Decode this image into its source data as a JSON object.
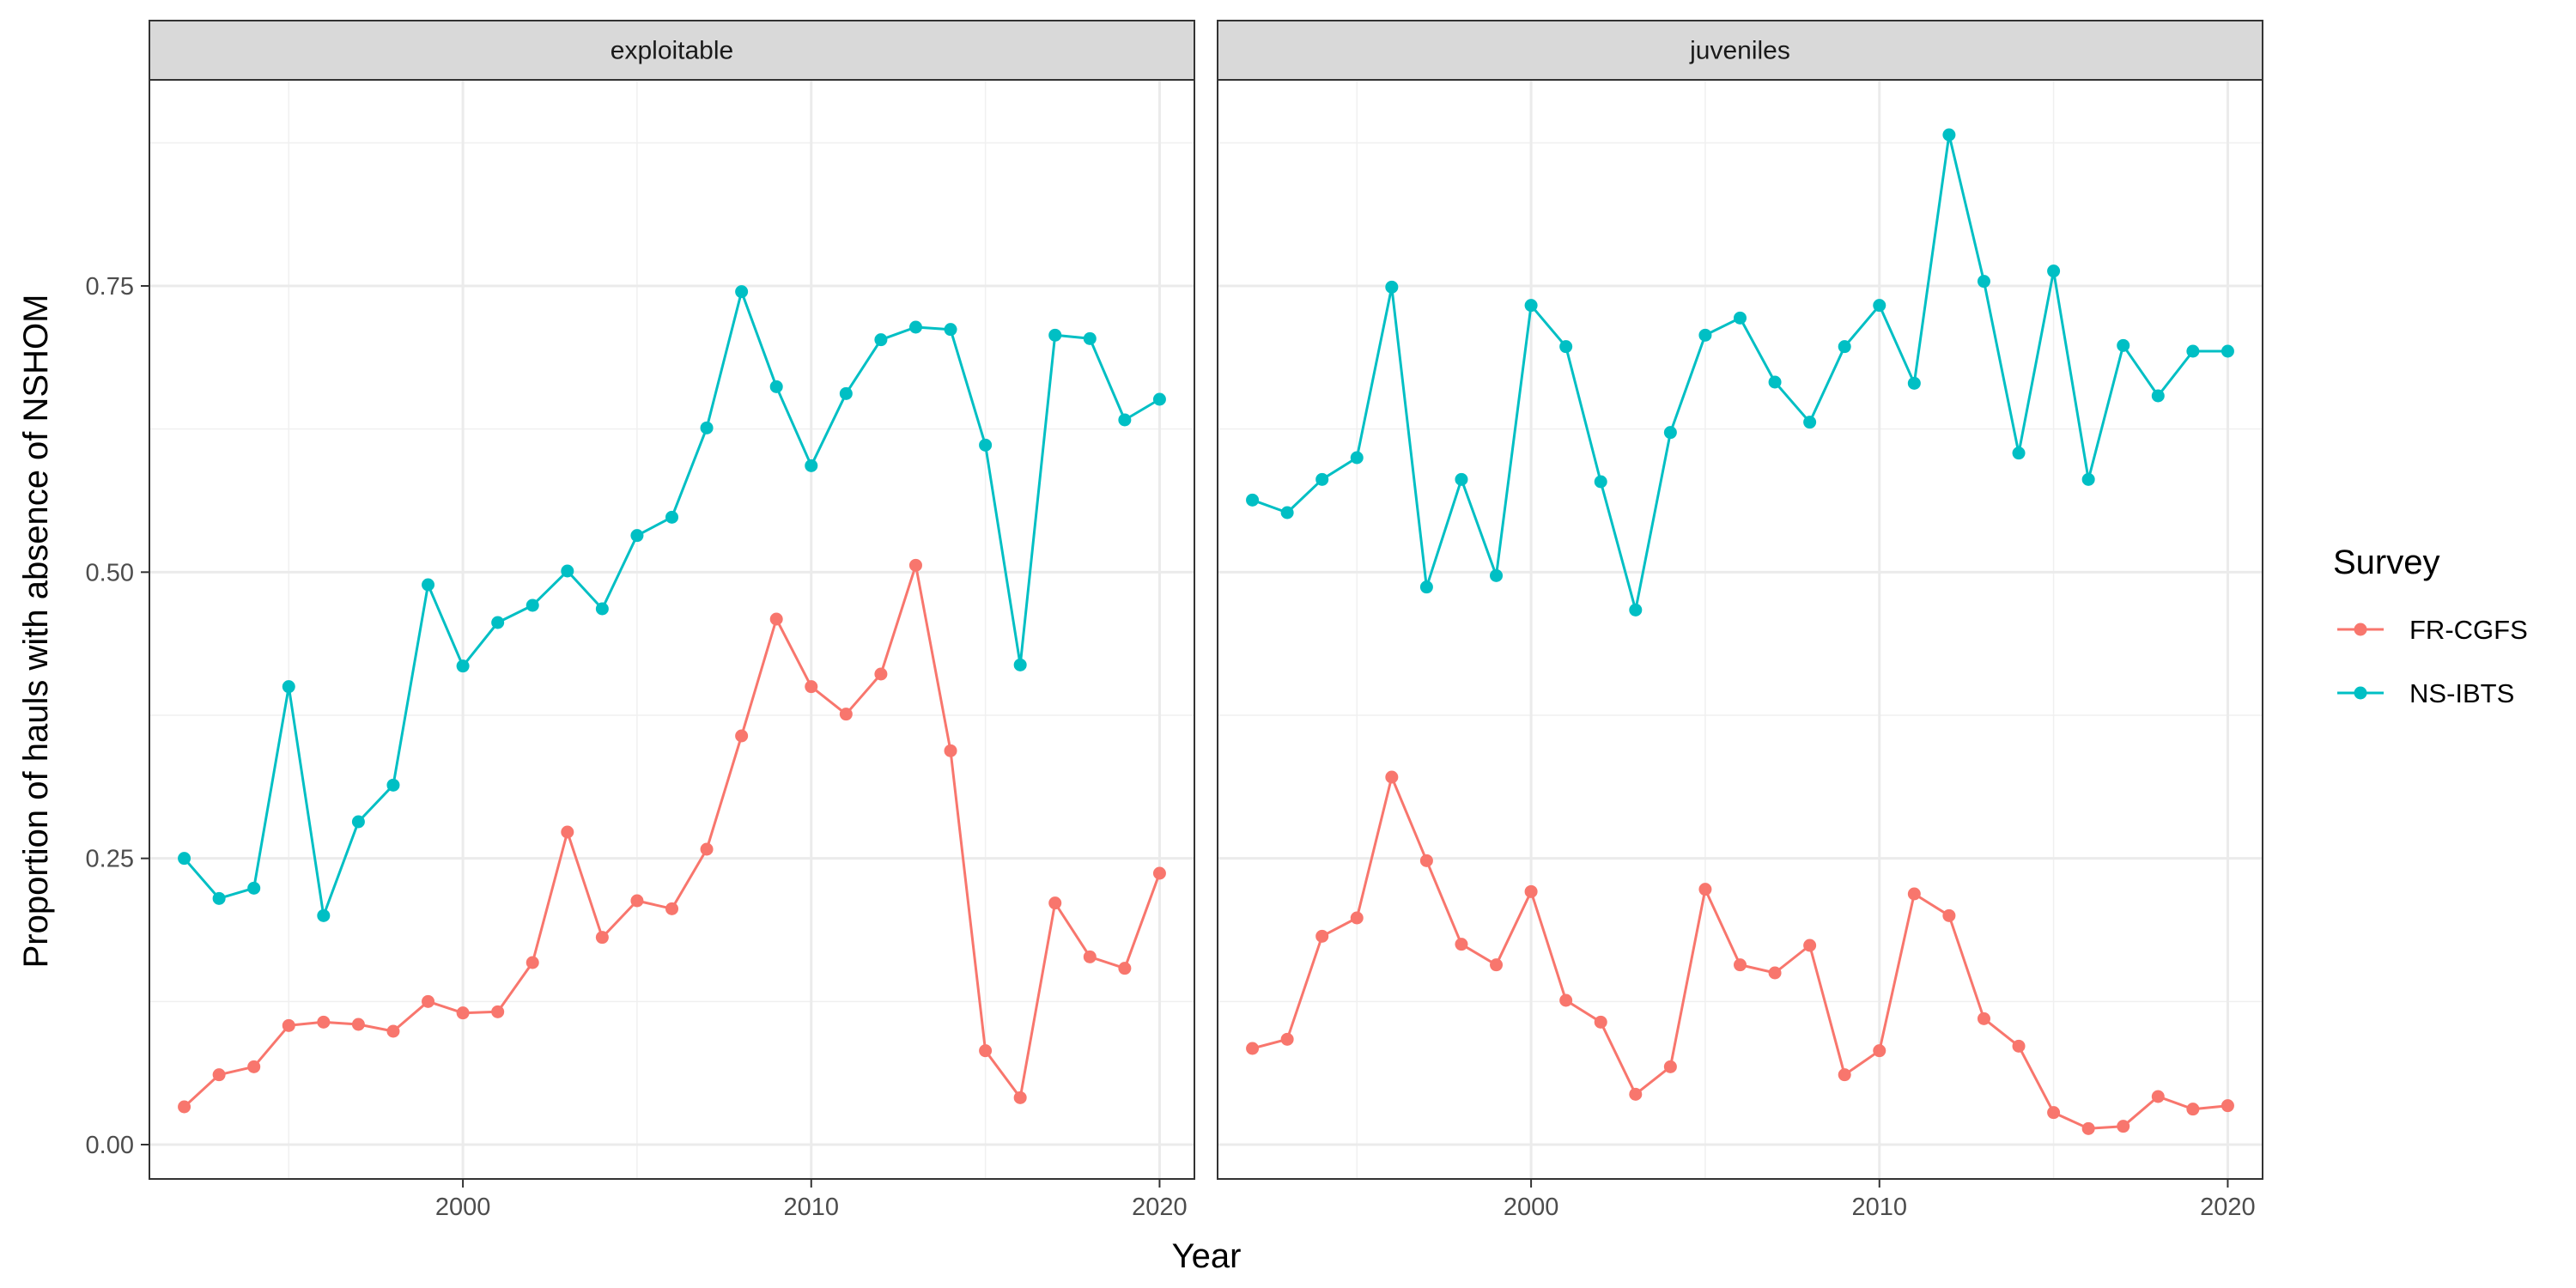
{
  "chart_data": {
    "type": "line",
    "xlabel": "Year",
    "ylabel": "Proportion of hauls with absence of NSHOM",
    "x_ticks": [
      2000,
      2010,
      2020
    ],
    "y_ticks": [
      "0.00",
      "0.25",
      "0.50",
      "0.75"
    ],
    "xlim": [
      1991,
      2021
    ],
    "ylim": [
      -0.03,
      0.93
    ],
    "grid": true,
    "legend": {
      "title": "Survey",
      "position": "right"
    },
    "series_colors": {
      "FR-CGFS": "#F8766D",
      "NS-IBTS": "#00BFC4"
    },
    "panels": [
      {
        "label": "exploitable",
        "x": [
          1992,
          1993,
          1994,
          1995,
          1996,
          1997,
          1998,
          1999,
          2000,
          2001,
          2002,
          2003,
          2004,
          2005,
          2006,
          2007,
          2008,
          2009,
          2010,
          2011,
          2012,
          2013,
          2014,
          2015,
          2016,
          2017,
          2018,
          2019,
          2020
        ],
        "series": [
          {
            "name": "NS-IBTS",
            "values": [
              0.25,
              0.215,
              0.224,
              0.4,
              0.2,
              0.282,
              0.314,
              0.489,
              0.418,
              0.456,
              0.471,
              0.501,
              0.468,
              0.532,
              0.548,
              0.626,
              0.745,
              0.662,
              0.593,
              0.656,
              0.703,
              0.714,
              0.712,
              0.611,
              0.419,
              0.707,
              0.704,
              0.633,
              0.651
            ]
          },
          {
            "name": "FR-CGFS",
            "values": [
              0.033,
              0.061,
              0.068,
              0.104,
              0.107,
              0.105,
              0.099,
              0.125,
              0.115,
              0.116,
              0.159,
              0.273,
              0.181,
              0.213,
              0.206,
              0.258,
              0.357,
              0.459,
              0.4,
              0.376,
              0.411,
              0.506,
              0.344,
              0.082,
              0.041,
              0.211,
              0.164,
              0.154,
              0.237
            ]
          }
        ]
      },
      {
        "label": "juveniles",
        "x": [
          1992,
          1993,
          1994,
          1995,
          1996,
          1997,
          1998,
          1999,
          2000,
          2001,
          2002,
          2003,
          2004,
          2005,
          2006,
          2007,
          2008,
          2009,
          2010,
          2011,
          2012,
          2013,
          2014,
          2015,
          2016,
          2017,
          2018,
          2019,
          2020
        ],
        "series": [
          {
            "name": "NS-IBTS",
            "values": [
              0.563,
              0.552,
              0.581,
              0.6,
              0.749,
              0.487,
              0.581,
              0.497,
              0.733,
              0.697,
              0.579,
              0.467,
              0.622,
              0.707,
              0.722,
              0.666,
              0.631,
              0.697,
              0.733,
              0.665,
              0.882,
              0.754,
              0.604,
              0.763,
              0.581,
              0.698,
              0.654,
              0.693,
              0.693
            ]
          },
          {
            "name": "FR-CGFS",
            "values": [
              0.084,
              0.092,
              0.182,
              0.198,
              0.321,
              0.248,
              0.175,
              0.157,
              0.221,
              0.126,
              0.107,
              0.044,
              0.068,
              0.223,
              0.157,
              0.15,
              0.174,
              0.061,
              0.082,
              0.219,
              0.2,
              0.11,
              0.086,
              0.028,
              0.014,
              0.016,
              0.042,
              0.031,
              0.034
            ]
          }
        ]
      }
    ]
  }
}
